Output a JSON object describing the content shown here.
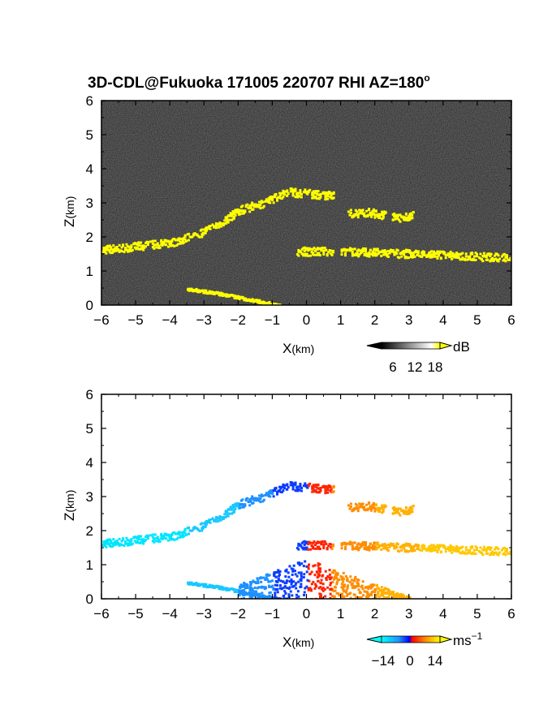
{
  "title": "3D-CDL@Fukuoka 171005 220707 RHI AZ=180",
  "title_degree": "o",
  "chart_data": [
    {
      "type": "heatmap",
      "name": "reflectivity",
      "xlabel_main": "X",
      "xlabel_unit": "(km)",
      "ylabel_main": "Z",
      "ylabel_unit": "(km)",
      "xlim": [
        -6,
        6
      ],
      "ylim": [
        0,
        6
      ],
      "x_ticks": [
        "−6",
        "−5",
        "−4",
        "−3",
        "−2",
        "−1",
        "0",
        "1",
        "2",
        "3",
        "4",
        "5",
        "6"
      ],
      "y_ticks": [
        "0",
        "1",
        "2",
        "3",
        "4",
        "5",
        "6"
      ],
      "background_color": "#1e1e1e",
      "echo_color": "#ffff00",
      "layers": [
        {
          "x": [
            -6.0,
            -5.0,
            -4.0,
            -3.2,
            -2.5,
            -2.0,
            -1.2,
            -0.6
          ],
          "z": [
            1.65,
            1.75,
            1.85,
            2.1,
            2.45,
            2.8,
            3.05,
            3.35
          ]
        },
        {
          "x": [
            -0.6,
            0.0,
            0.5,
            0.8
          ],
          "z": [
            3.35,
            3.3,
            3.25,
            3.25
          ]
        },
        {
          "x": [
            1.2,
            1.8,
            2.3
          ],
          "z": [
            2.7,
            2.75,
            2.65
          ]
        },
        {
          "x": [
            2.5,
            2.8,
            3.1
          ],
          "z": [
            2.6,
            2.6,
            2.65
          ]
        },
        {
          "x": [
            -0.3,
            0.2,
            0.8
          ],
          "z": [
            1.6,
            1.6,
            1.6
          ]
        },
        {
          "x": [
            1.0,
            2.5,
            4.0,
            5.0,
            6.0
          ],
          "z": [
            1.6,
            1.55,
            1.5,
            1.45,
            1.4
          ]
        },
        {
          "x": [
            -3.5,
            -2.5,
            -1.5,
            -0.8
          ],
          "z": [
            0.5,
            0.35,
            0.15,
            0.02
          ]
        }
      ],
      "colorbar": {
        "ticks": [
          "6",
          "12",
          "18"
        ],
        "unit": "dB"
      }
    },
    {
      "type": "heatmap",
      "name": "doppler-velocity",
      "xlabel_main": "X",
      "xlabel_unit": "(km)",
      "ylabel_main": "Z",
      "ylabel_unit": "(km)",
      "xlim": [
        -6,
        6
      ],
      "ylim": [
        0,
        6
      ],
      "x_ticks": [
        "−6",
        "−5",
        "−4",
        "−3",
        "−2",
        "−1",
        "0",
        "1",
        "2",
        "3",
        "4",
        "5",
        "6"
      ],
      "y_ticks": [
        "0",
        "1",
        "2",
        "3",
        "4",
        "5",
        "6"
      ],
      "colorbar": {
        "ticks": [
          "−14",
          "0",
          "14"
        ],
        "unit": "ms",
        "unit_exp": "−1"
      }
    }
  ]
}
